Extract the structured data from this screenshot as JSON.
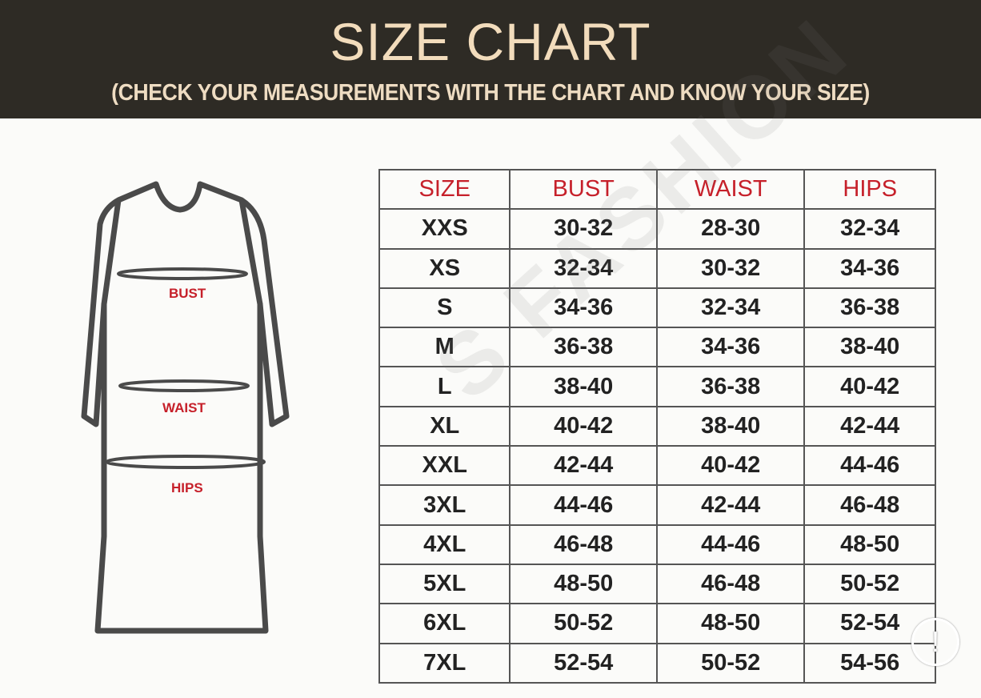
{
  "header": {
    "title": "SIZE CHART",
    "subtitle": "(CHECK YOUR MEASUREMENTS WITH THE CHART AND KNOW YOUR SIZE)"
  },
  "diagram": {
    "labels": {
      "bust": "BUST",
      "waist": "WAIST",
      "hips": "HIPS"
    }
  },
  "watermark": "S FASHION",
  "table": {
    "columns": [
      "SIZE",
      "BUST",
      "WAIST",
      "HIPS"
    ],
    "rows": [
      [
        "XXS",
        "30-32",
        "28-30",
        "32-34"
      ],
      [
        "XS",
        "32-34",
        "30-32",
        "34-36"
      ],
      [
        "S",
        "34-36",
        "32-34",
        "36-38"
      ],
      [
        "M",
        "36-38",
        "34-36",
        "38-40"
      ],
      [
        "L",
        "38-40",
        "36-38",
        "40-42"
      ],
      [
        "XL",
        "40-42",
        "38-40",
        "42-44"
      ],
      [
        "XXL",
        "42-44",
        "40-42",
        "44-46"
      ],
      [
        "3XL",
        "44-46",
        "42-44",
        "46-48"
      ],
      [
        "4XL",
        "46-48",
        "44-46",
        "48-50"
      ],
      [
        "5XL",
        "48-50",
        "46-48",
        "50-52"
      ],
      [
        "6XL",
        "50-52",
        "48-50",
        "52-54"
      ],
      [
        "7XL",
        "52-54",
        "50-52",
        "54-56"
      ]
    ]
  },
  "colors": {
    "banner": "#2e2b25",
    "title": "#f2dcbc",
    "header_text": "#c6202a"
  },
  "overlay": {
    "icon": "alert-icon"
  }
}
